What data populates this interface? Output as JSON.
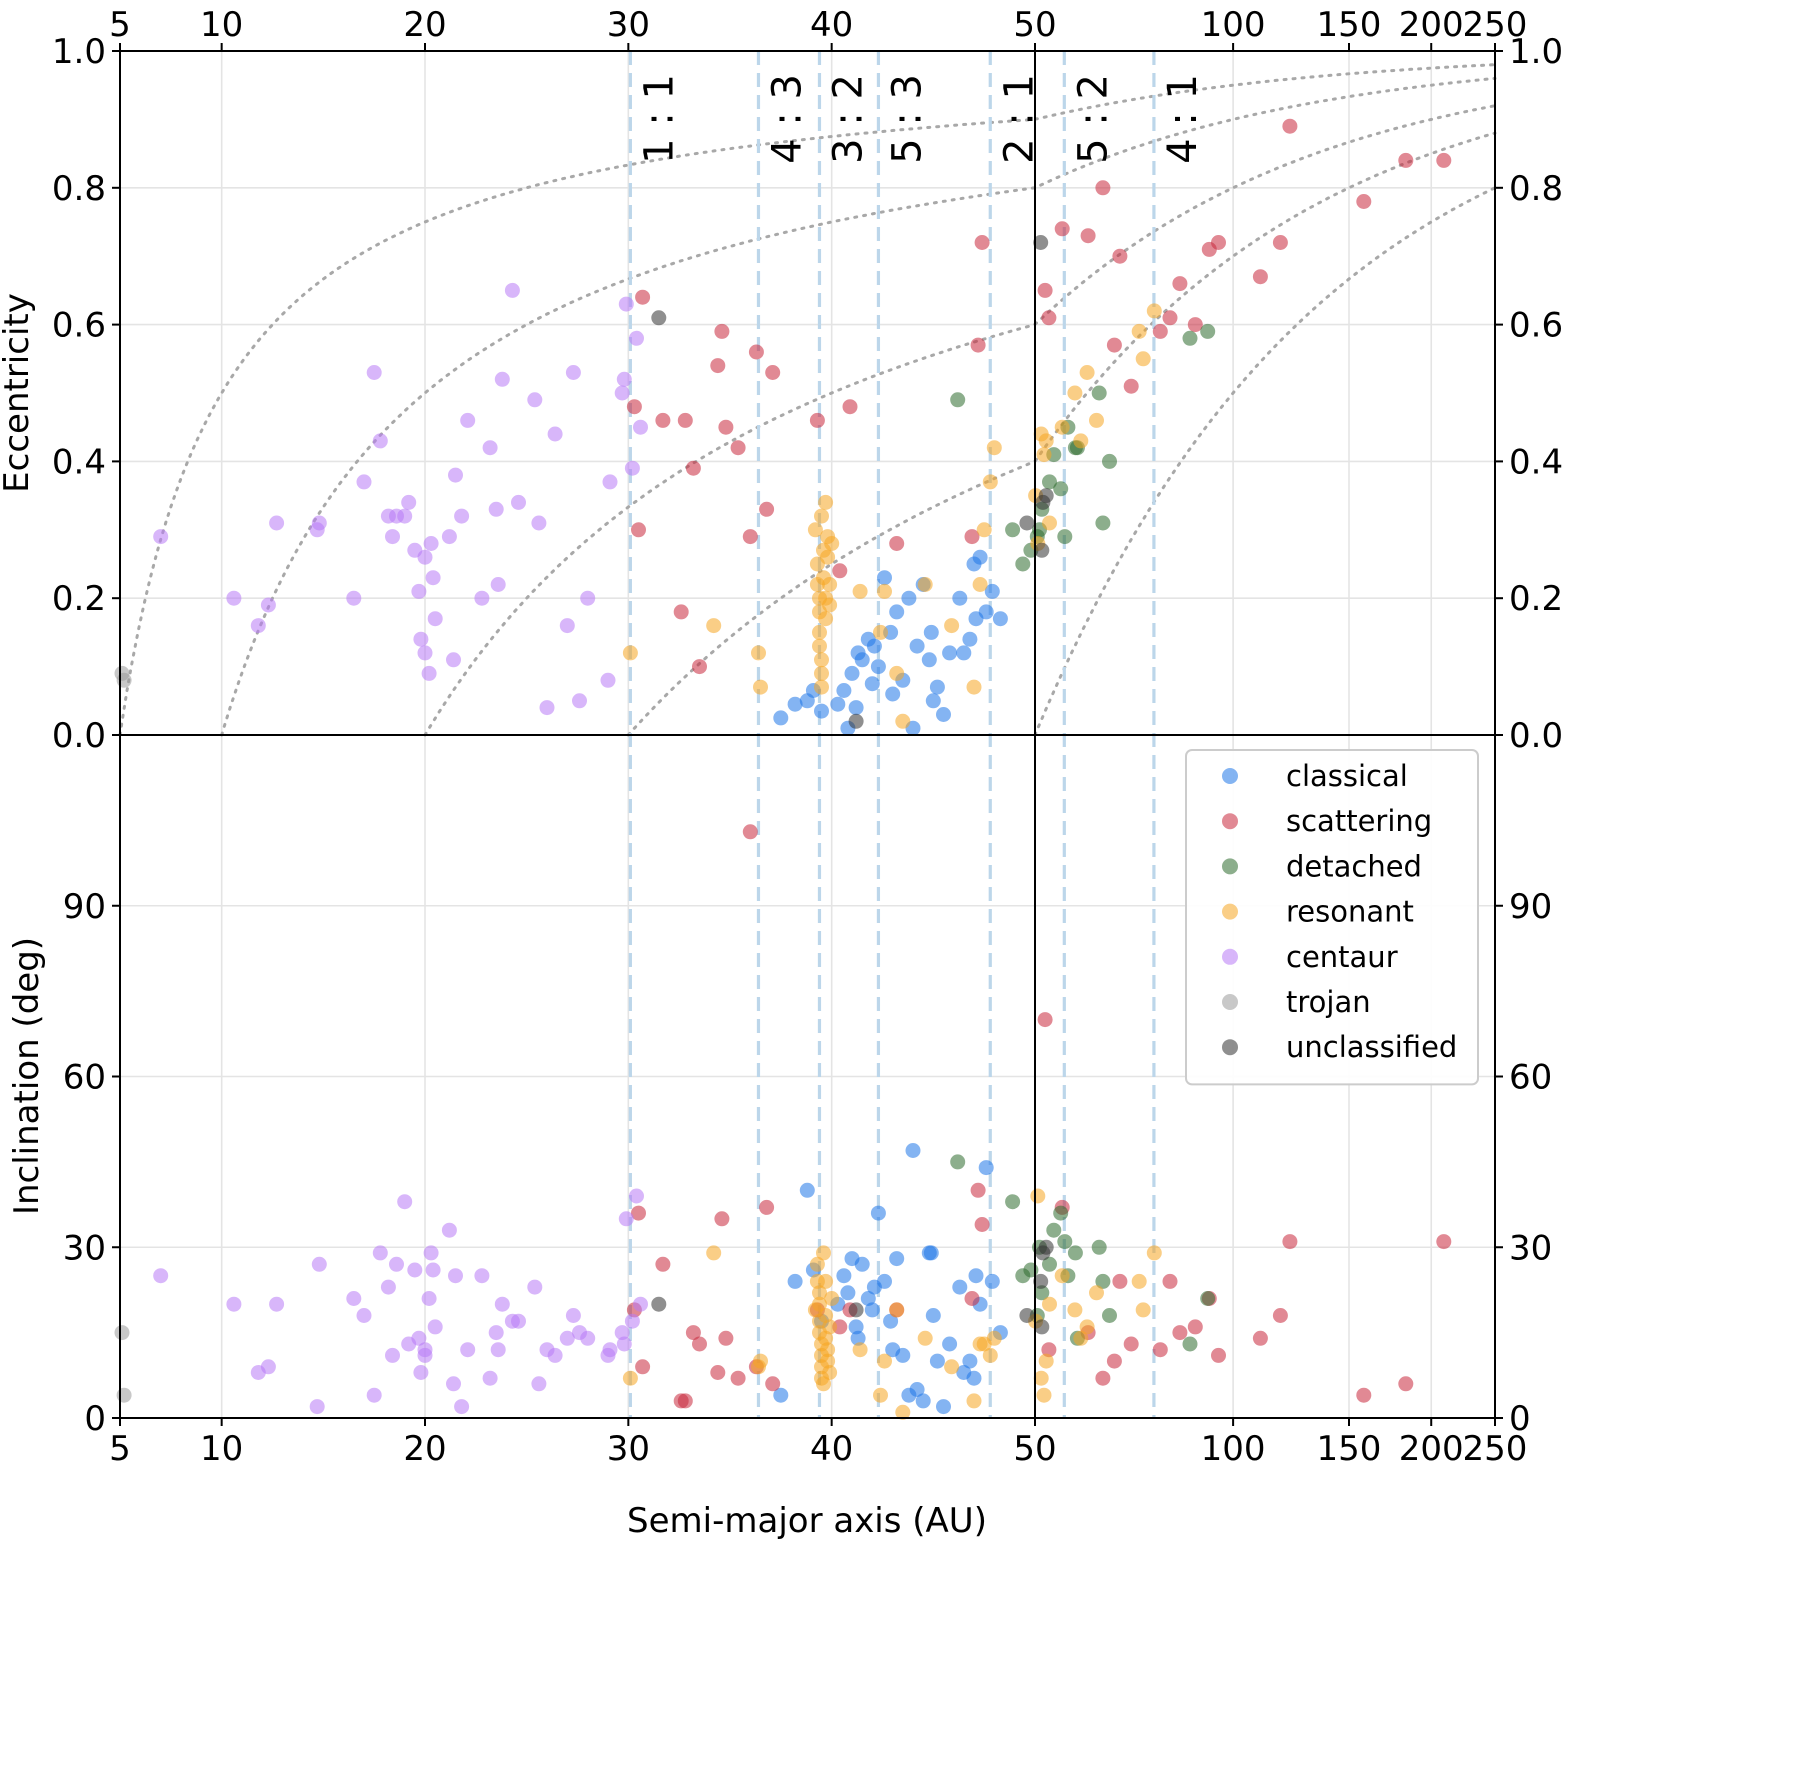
{
  "chart_data": {
    "type": "scatter",
    "description_panels": [
      "eccentricity",
      "inclination"
    ],
    "xlabel": "Semi-major axis (AU)",
    "x_scale": "piecewise (linear 5–50 AU, log 50–250 AU)",
    "x_ticks": [
      5,
      10,
      20,
      30,
      40,
      50,
      100,
      150,
      200,
      250
    ],
    "x_tick_labels": [
      "5",
      "10",
      "20",
      "30",
      "40",
      "50",
      "100",
      "150",
      "200",
      "250"
    ],
    "xlim": [
      5,
      250
    ],
    "top_panel": {
      "ylabel": "Eccentricity",
      "ylim": [
        0,
        1
      ],
      "y_ticks": [
        0,
        0.2,
        0.4,
        0.6,
        0.8,
        1.0
      ],
      "y_tick_labels": [
        "0.0",
        "0.2",
        "0.4",
        "0.6",
        "0.8",
        "1.0"
      ]
    },
    "bottom_panel": {
      "ylabel": "Inclination (deg)",
      "ylim": [
        0,
        120
      ],
      "y_ticks": [
        0,
        30,
        60,
        90
      ],
      "y_tick_labels": [
        "0",
        "30",
        "60",
        "90"
      ]
    },
    "resonances": [
      {
        "label": "1 : 1",
        "a": 30.1
      },
      {
        "label": "4 : 3",
        "a": 36.4
      },
      {
        "label": "3 : 2",
        "a": 39.4
      },
      {
        "label": "5 : 3",
        "a": 42.3
      },
      {
        "label": "2 : 1",
        "a": 47.8
      },
      {
        "label": "5 : 2",
        "a": 55.4
      },
      {
        "label": "4 : 1",
        "a": 75.8
      }
    ],
    "perihelion_curves_q_au": [
      5,
      10,
      20,
      30,
      50
    ],
    "legend": {
      "position": "lower-panel top-right"
    },
    "series": [
      {
        "name": "classical",
        "color": "#1f77e8",
        "points": [
          [
            37.5,
            0.025,
            4
          ],
          [
            38.2,
            0.045,
            24
          ],
          [
            38.8,
            0.05,
            40
          ],
          [
            39.1,
            0.065,
            26
          ],
          [
            39.5,
            0.035,
            17
          ],
          [
            40.3,
            0.045,
            20
          ],
          [
            40.6,
            0.065,
            25
          ],
          [
            40.8,
            0.01,
            22
          ],
          [
            41.0,
            0.09,
            28
          ],
          [
            41.3,
            0.12,
            14
          ],
          [
            41.5,
            0.11,
            27
          ],
          [
            41.8,
            0.14,
            21
          ],
          [
            42.0,
            0.075,
            19
          ],
          [
            42.3,
            0.1,
            36
          ],
          [
            42.6,
            0.23,
            24
          ],
          [
            42.9,
            0.15,
            17
          ],
          [
            43.2,
            0.18,
            28
          ],
          [
            43.5,
            0.08,
            11
          ],
          [
            43.8,
            0.2,
            4
          ],
          [
            44.0,
            0.01,
            47
          ],
          [
            44.2,
            0.13,
            5
          ],
          [
            44.5,
            0.22,
            3
          ],
          [
            44.8,
            0.11,
            29
          ],
          [
            45.0,
            0.05,
            18
          ],
          [
            45.2,
            0.07,
            10
          ],
          [
            45.5,
            0.03,
            2
          ],
          [
            45.8,
            0.12,
            13
          ],
          [
            46.3,
            0.2,
            23
          ],
          [
            46.8,
            0.14,
            10
          ],
          [
            47.1,
            0.17,
            25
          ],
          [
            47.3,
            0.26,
            20
          ],
          [
            47.6,
            0.18,
            44
          ],
          [
            47.9,
            0.21,
            24
          ],
          [
            48.3,
            0.17,
            15
          ],
          [
            46.5,
            0.12,
            8
          ],
          [
            47.0,
            0.25,
            7
          ],
          [
            41.2,
            0.04,
            16
          ],
          [
            43.0,
            0.06,
            12
          ],
          [
            44.9,
            0.15,
            29
          ],
          [
            42.1,
            0.13,
            23
          ]
        ]
      },
      {
        "name": "scattering",
        "color": "#c8283c",
        "points": [
          [
            30.3,
            0.48,
            19
          ],
          [
            30.5,
            0.3,
            36
          ],
          [
            30.7,
            0.64,
            9
          ],
          [
            31.7,
            0.46,
            27
          ],
          [
            32.6,
            0.18,
            3
          ],
          [
            32.8,
            0.46,
            3
          ],
          [
            33.2,
            0.39,
            15
          ],
          [
            33.5,
            0.1,
            13
          ],
          [
            34.4,
            0.54,
            8
          ],
          [
            34.6,
            0.59,
            35
          ],
          [
            34.8,
            0.45,
            14
          ],
          [
            35.4,
            0.42,
            7
          ],
          [
            36.3,
            0.56,
            9
          ],
          [
            36.8,
            0.33,
            37
          ],
          [
            37.1,
            0.53,
            6
          ],
          [
            39.3,
            0.46,
            19
          ],
          [
            40.4,
            0.24,
            16
          ],
          [
            40.9,
            0.48,
            19
          ],
          [
            43.2,
            0.28,
            19
          ],
          [
            46.9,
            0.29,
            21
          ],
          [
            47.2,
            0.57,
            40
          ],
          [
            47.4,
            0.72,
            34
          ],
          [
            51.8,
            0.65,
            70
          ],
          [
            52.5,
            0.61,
            12
          ],
          [
            55.0,
            0.74,
            37
          ],
          [
            60.2,
            0.73,
            15
          ],
          [
            63.4,
            0.8,
            7
          ],
          [
            67.3,
            0.7,
            24
          ],
          [
            70.0,
            0.51,
            13
          ],
          [
            77.5,
            0.59,
            12
          ],
          [
            80.2,
            0.61,
            24
          ],
          [
            83.0,
            0.66,
            15
          ],
          [
            87.6,
            0.6,
            16
          ],
          [
            92.0,
            0.71,
            21
          ],
          [
            95.0,
            0.72,
            11
          ],
          [
            110.0,
            0.67,
            14
          ],
          [
            118.0,
            0.72,
            18
          ],
          [
            122.0,
            0.89,
            31
          ],
          [
            158.0,
            0.78,
            4
          ],
          [
            183.0,
            0.84,
            6
          ],
          [
            209.0,
            0.84,
            31
          ],
          [
            36.0,
            0.29,
            103
          ],
          [
            66.0,
            0.57,
            10
          ]
        ]
      },
      {
        "name": "detached",
        "color": "#2d6b2d",
        "points": [
          [
            46.2,
            0.49,
            45
          ],
          [
            48.9,
            0.3,
            38
          ],
          [
            49.4,
            0.25,
            25
          ],
          [
            49.8,
            0.27,
            26
          ],
          [
            50.4,
            0.29,
            18
          ],
          [
            50.8,
            0.3,
            30
          ],
          [
            51.2,
            0.33,
            22
          ],
          [
            52.6,
            0.37,
            27
          ],
          [
            53.4,
            0.41,
            33
          ],
          [
            54.7,
            0.36,
            36
          ],
          [
            56.1,
            0.45,
            25
          ],
          [
            58.0,
            0.42,
            14
          ],
          [
            62.6,
            0.5,
            30
          ],
          [
            64.9,
            0.4,
            18
          ],
          [
            63.4,
            0.31,
            24
          ],
          [
            86.0,
            0.58,
            13
          ],
          [
            91.5,
            0.59,
            21
          ],
          [
            55.5,
            0.29,
            31
          ],
          [
            57.6,
            0.42,
            29
          ]
        ]
      },
      {
        "name": "resonant",
        "color": "#f5a623",
        "points": [
          [
            30.1,
            0.12,
            7
          ],
          [
            34.2,
            0.16,
            29
          ],
          [
            36.4,
            0.12,
            9
          ],
          [
            36.5,
            0.07,
            10
          ],
          [
            39.2,
            0.3,
            19
          ],
          [
            39.3,
            0.25,
            27
          ],
          [
            39.3,
            0.22,
            24
          ],
          [
            39.4,
            0.2,
            22
          ],
          [
            39.4,
            0.18,
            20
          ],
          [
            39.4,
            0.15,
            17
          ],
          [
            39.4,
            0.13,
            15
          ],
          [
            39.5,
            0.11,
            13
          ],
          [
            39.5,
            0.09,
            11
          ],
          [
            39.5,
            0.07,
            9
          ],
          [
            39.5,
            0.32,
            7
          ],
          [
            39.6,
            0.27,
            6
          ],
          [
            39.6,
            0.23,
            29
          ],
          [
            39.7,
            0.34,
            24
          ],
          [
            39.7,
            0.2,
            18
          ],
          [
            39.7,
            0.17,
            14
          ],
          [
            39.8,
            0.29,
            12
          ],
          [
            39.8,
            0.26,
            10
          ],
          [
            39.9,
            0.22,
            8
          ],
          [
            39.9,
            0.19,
            16
          ],
          [
            40.0,
            0.28,
            21
          ],
          [
            41.4,
            0.21,
            12
          ],
          [
            42.4,
            0.15,
            4
          ],
          [
            42.6,
            0.21,
            10
          ],
          [
            43.2,
            0.09,
            19
          ],
          [
            44.6,
            0.22,
            14
          ],
          [
            45.9,
            0.16,
            9
          ],
          [
            47.0,
            0.07,
            3
          ],
          [
            47.3,
            0.22,
            13
          ],
          [
            47.8,
            0.37,
            11
          ],
          [
            48.0,
            0.42,
            14
          ],
          [
            50.1,
            0.35,
            17
          ],
          [
            50.5,
            0.28,
            39
          ],
          [
            51.1,
            0.44,
            7
          ],
          [
            51.6,
            0.41,
            4
          ],
          [
            52.0,
            0.43,
            10
          ],
          [
            52.6,
            0.31,
            20
          ],
          [
            55.0,
            0.45,
            25
          ],
          [
            57.5,
            0.5,
            19
          ],
          [
            58.7,
            0.43,
            14
          ],
          [
            60.0,
            0.53,
            16
          ],
          [
            62.0,
            0.46,
            22
          ],
          [
            72.0,
            0.59,
            24
          ],
          [
            73.0,
            0.55,
            19
          ],
          [
            75.9,
            0.62,
            29
          ],
          [
            47.5,
            0.3,
            13
          ],
          [
            43.5,
            0.02,
            1
          ]
        ]
      },
      {
        "name": "centaur",
        "color": "#b87af5",
        "points": [
          [
            7.0,
            0.29,
            25
          ],
          [
            10.6,
            0.2,
            20
          ],
          [
            11.8,
            0.16,
            8
          ],
          [
            12.3,
            0.19,
            9
          ],
          [
            12.7,
            0.31,
            20
          ],
          [
            14.7,
            0.3,
            2
          ],
          [
            14.8,
            0.31,
            27
          ],
          [
            16.5,
            0.2,
            21
          ],
          [
            17.0,
            0.37,
            18
          ],
          [
            17.5,
            0.53,
            4
          ],
          [
            17.8,
            0.43,
            29
          ],
          [
            18.2,
            0.32,
            23
          ],
          [
            18.4,
            0.29,
            11
          ],
          [
            18.6,
            0.32,
            27
          ],
          [
            19.0,
            0.32,
            38
          ],
          [
            19.2,
            0.34,
            13
          ],
          [
            19.5,
            0.27,
            26
          ],
          [
            19.7,
            0.21,
            14
          ],
          [
            19.8,
            0.14,
            8
          ],
          [
            20.0,
            0.26,
            11
          ],
          [
            20.2,
            0.09,
            21
          ],
          [
            20.3,
            0.28,
            29
          ],
          [
            20.5,
            0.17,
            16
          ],
          [
            20.4,
            0.23,
            26
          ],
          [
            21.2,
            0.29,
            33
          ],
          [
            21.4,
            0.11,
            6
          ],
          [
            21.5,
            0.38,
            25
          ],
          [
            21.8,
            0.32,
            2
          ],
          [
            22.1,
            0.46,
            12
          ],
          [
            22.8,
            0.2,
            25
          ],
          [
            23.2,
            0.42,
            7
          ],
          [
            23.5,
            0.33,
            15
          ],
          [
            23.6,
            0.22,
            12
          ],
          [
            23.8,
            0.52,
            20
          ],
          [
            24.3,
            0.65,
            17
          ],
          [
            24.6,
            0.34,
            17
          ],
          [
            25.4,
            0.49,
            23
          ],
          [
            25.6,
            0.31,
            6
          ],
          [
            26.0,
            0.04,
            12
          ],
          [
            26.4,
            0.44,
            11
          ],
          [
            27.0,
            0.16,
            14
          ],
          [
            27.3,
            0.53,
            18
          ],
          [
            27.6,
            0.05,
            15
          ],
          [
            28.0,
            0.2,
            14
          ],
          [
            29.0,
            0.08,
            11
          ],
          [
            29.1,
            0.37,
            12
          ],
          [
            29.7,
            0.5,
            15
          ],
          [
            29.8,
            0.52,
            13
          ],
          [
            29.9,
            0.63,
            35
          ],
          [
            30.4,
            0.58,
            39
          ],
          [
            30.6,
            0.45,
            20
          ],
          [
            30.2,
            0.39,
            17
          ],
          [
            20.0,
            0.12,
            12
          ]
        ]
      },
      {
        "name": "trojan",
        "color": "#9a9a9a",
        "points": [
          [
            5.1,
            0.09,
            15
          ],
          [
            5.2,
            0.08,
            4
          ]
        ]
      },
      {
        "name": "unclassified",
        "color": "#333333",
        "points": [
          [
            31.5,
            0.61,
            20
          ],
          [
            41.2,
            0.02,
            19
          ],
          [
            49.6,
            0.31,
            18
          ],
          [
            51.0,
            0.72,
            24
          ],
          [
            51.4,
            0.34,
            29
          ],
          [
            52.0,
            0.35,
            30
          ],
          [
            51.2,
            0.27,
            16
          ]
        ]
      }
    ]
  }
}
